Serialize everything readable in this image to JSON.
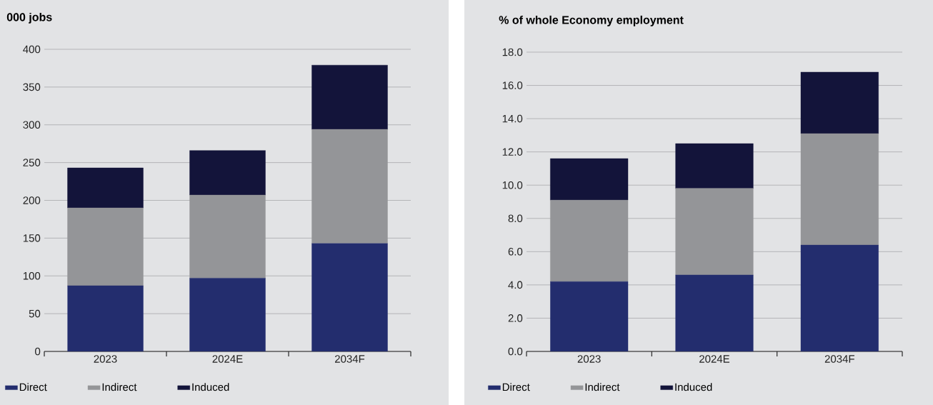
{
  "chart_data": [
    {
      "type": "bar",
      "stacked": true,
      "title": "000 jobs",
      "categories": [
        "2023",
        "2024E",
        "2034F"
      ],
      "series": [
        {
          "name": "Direct",
          "color": "#232d6e",
          "values": [
            87,
            97,
            143
          ]
        },
        {
          "name": "Indirect",
          "color": "#949598",
          "values": [
            103,
            110,
            151
          ]
        },
        {
          "name": "Induced",
          "color": "#13143a",
          "values": [
            53,
            59,
            85
          ]
        }
      ],
      "ylim": [
        0,
        400
      ],
      "yticks": [
        0,
        50,
        100,
        150,
        200,
        250,
        300,
        350,
        400
      ],
      "grid": "y",
      "legend": "bottom"
    },
    {
      "type": "bar",
      "stacked": true,
      "title": "% of whole Economy employment",
      "categories": [
        "2023",
        "2024E",
        "2034F"
      ],
      "series": [
        {
          "name": "Direct",
          "color": "#232d6e",
          "values": [
            4.2,
            4.6,
            6.4
          ]
        },
        {
          "name": "Indirect",
          "color": "#949598",
          "values": [
            4.9,
            5.2,
            6.7
          ]
        },
        {
          "name": "Induced",
          "color": "#13143a",
          "values": [
            2.5,
            2.7,
            3.7
          ]
        }
      ],
      "ylim": [
        0,
        18
      ],
      "yticks": [
        {
          "value": 0,
          "label": "0.0"
        },
        {
          "value": 2,
          "label": "2.0"
        },
        {
          "value": 4,
          "label": "4.0"
        },
        {
          "value": 6,
          "label": "6.0"
        },
        {
          "value": 8,
          "label": "8.0"
        },
        {
          "value": 10,
          "label": "10.0"
        },
        {
          "value": 12,
          "label": "12.0"
        },
        {
          "value": 14,
          "label": "14.0"
        },
        {
          "value": 16,
          "label": "16.0"
        },
        {
          "value": 18,
          "label": "18.0"
        }
      ],
      "grid": "y",
      "legend": "bottom"
    }
  ]
}
